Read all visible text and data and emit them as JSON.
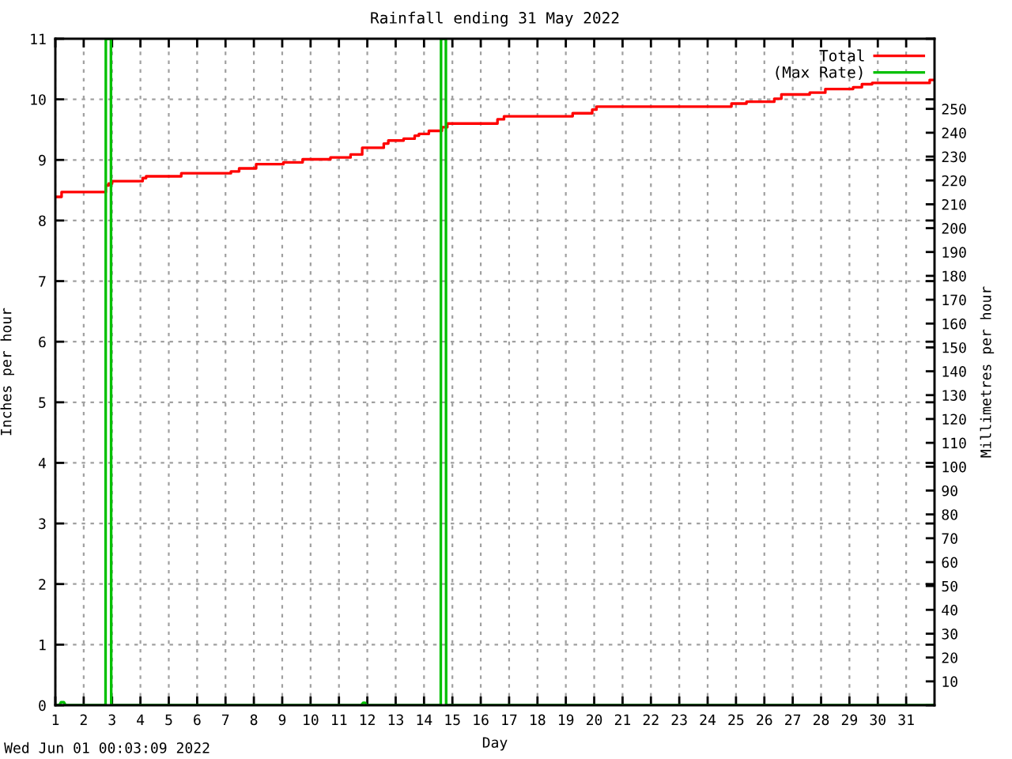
{
  "chart_data": {
    "type": "step",
    "title": "Rainfall ending 31 May 2022",
    "xlabel": "Day",
    "ylabel": "Inches per hour",
    "y2label": "Millimetres per hour",
    "annotations": [
      "Wed Jun 01 00:03:09 2022"
    ],
    "xlim": [
      1,
      32
    ],
    "xticks": [
      1,
      2,
      3,
      4,
      5,
      6,
      7,
      8,
      9,
      10,
      11,
      12,
      13,
      14,
      15,
      16,
      17,
      18,
      19,
      20,
      21,
      22,
      23,
      24,
      25,
      26,
      27,
      28,
      29,
      30,
      31
    ],
    "ylim": [
      0,
      11
    ],
    "yticks": [
      0,
      1,
      2,
      3,
      4,
      5,
      6,
      7,
      8,
      9,
      10,
      11
    ],
    "y2lim": [
      0,
      279.4
    ],
    "y2ticks": [
      10,
      20,
      30,
      40,
      50,
      60,
      70,
      80,
      90,
      100,
      110,
      120,
      130,
      140,
      150,
      160,
      170,
      180,
      190,
      200,
      210,
      220,
      230,
      240,
      250
    ],
    "grid": true,
    "legend": "top right",
    "series": [
      {
        "name": "Total",
        "color": "#ff0000",
        "x": [
          1.0,
          1.22,
          2.78,
          2.88,
          3.0,
          4.08,
          4.2,
          5.44,
          7.19,
          7.48,
          8.08,
          9.04,
          9.72,
          10.7,
          11.41,
          11.82,
          12.58,
          12.74,
          13.28,
          13.67,
          13.82,
          14.17,
          14.63,
          14.82,
          16.59,
          16.82,
          19.24,
          19.93,
          20.08,
          24.84,
          25.37,
          26.35,
          26.6,
          27.6,
          28.15,
          29.13,
          29.44,
          29.8,
          31.83,
          32.0
        ],
        "values": [
          8.39,
          8.47,
          8.58,
          8.61,
          8.65,
          8.7,
          8.73,
          8.78,
          8.81,
          8.86,
          8.93,
          8.96,
          9.01,
          9.04,
          9.09,
          9.2,
          9.27,
          9.32,
          9.35,
          9.4,
          9.43,
          9.48,
          9.54,
          9.6,
          9.67,
          9.72,
          9.77,
          9.83,
          9.88,
          9.93,
          9.96,
          10.01,
          10.08,
          10.11,
          10.17,
          10.2,
          10.25,
          10.27,
          10.32,
          10.32
        ]
      },
      {
        "name": "(Max Rate)",
        "color": "#00c000",
        "type": "line",
        "x": [
          1.0,
          1.14,
          1.2,
          1.3,
          1.36,
          2.77,
          2.78,
          2.96,
          2.97,
          11.78,
          11.85,
          11.92,
          11.97,
          14.59,
          14.6,
          14.77,
          14.78,
          32.0
        ],
        "values": [
          0,
          0,
          0.05,
          0.05,
          0,
          0,
          11,
          11,
          0,
          0,
          0.04,
          0.04,
          0,
          0,
          11,
          11,
          0,
          0
        ]
      }
    ]
  }
}
